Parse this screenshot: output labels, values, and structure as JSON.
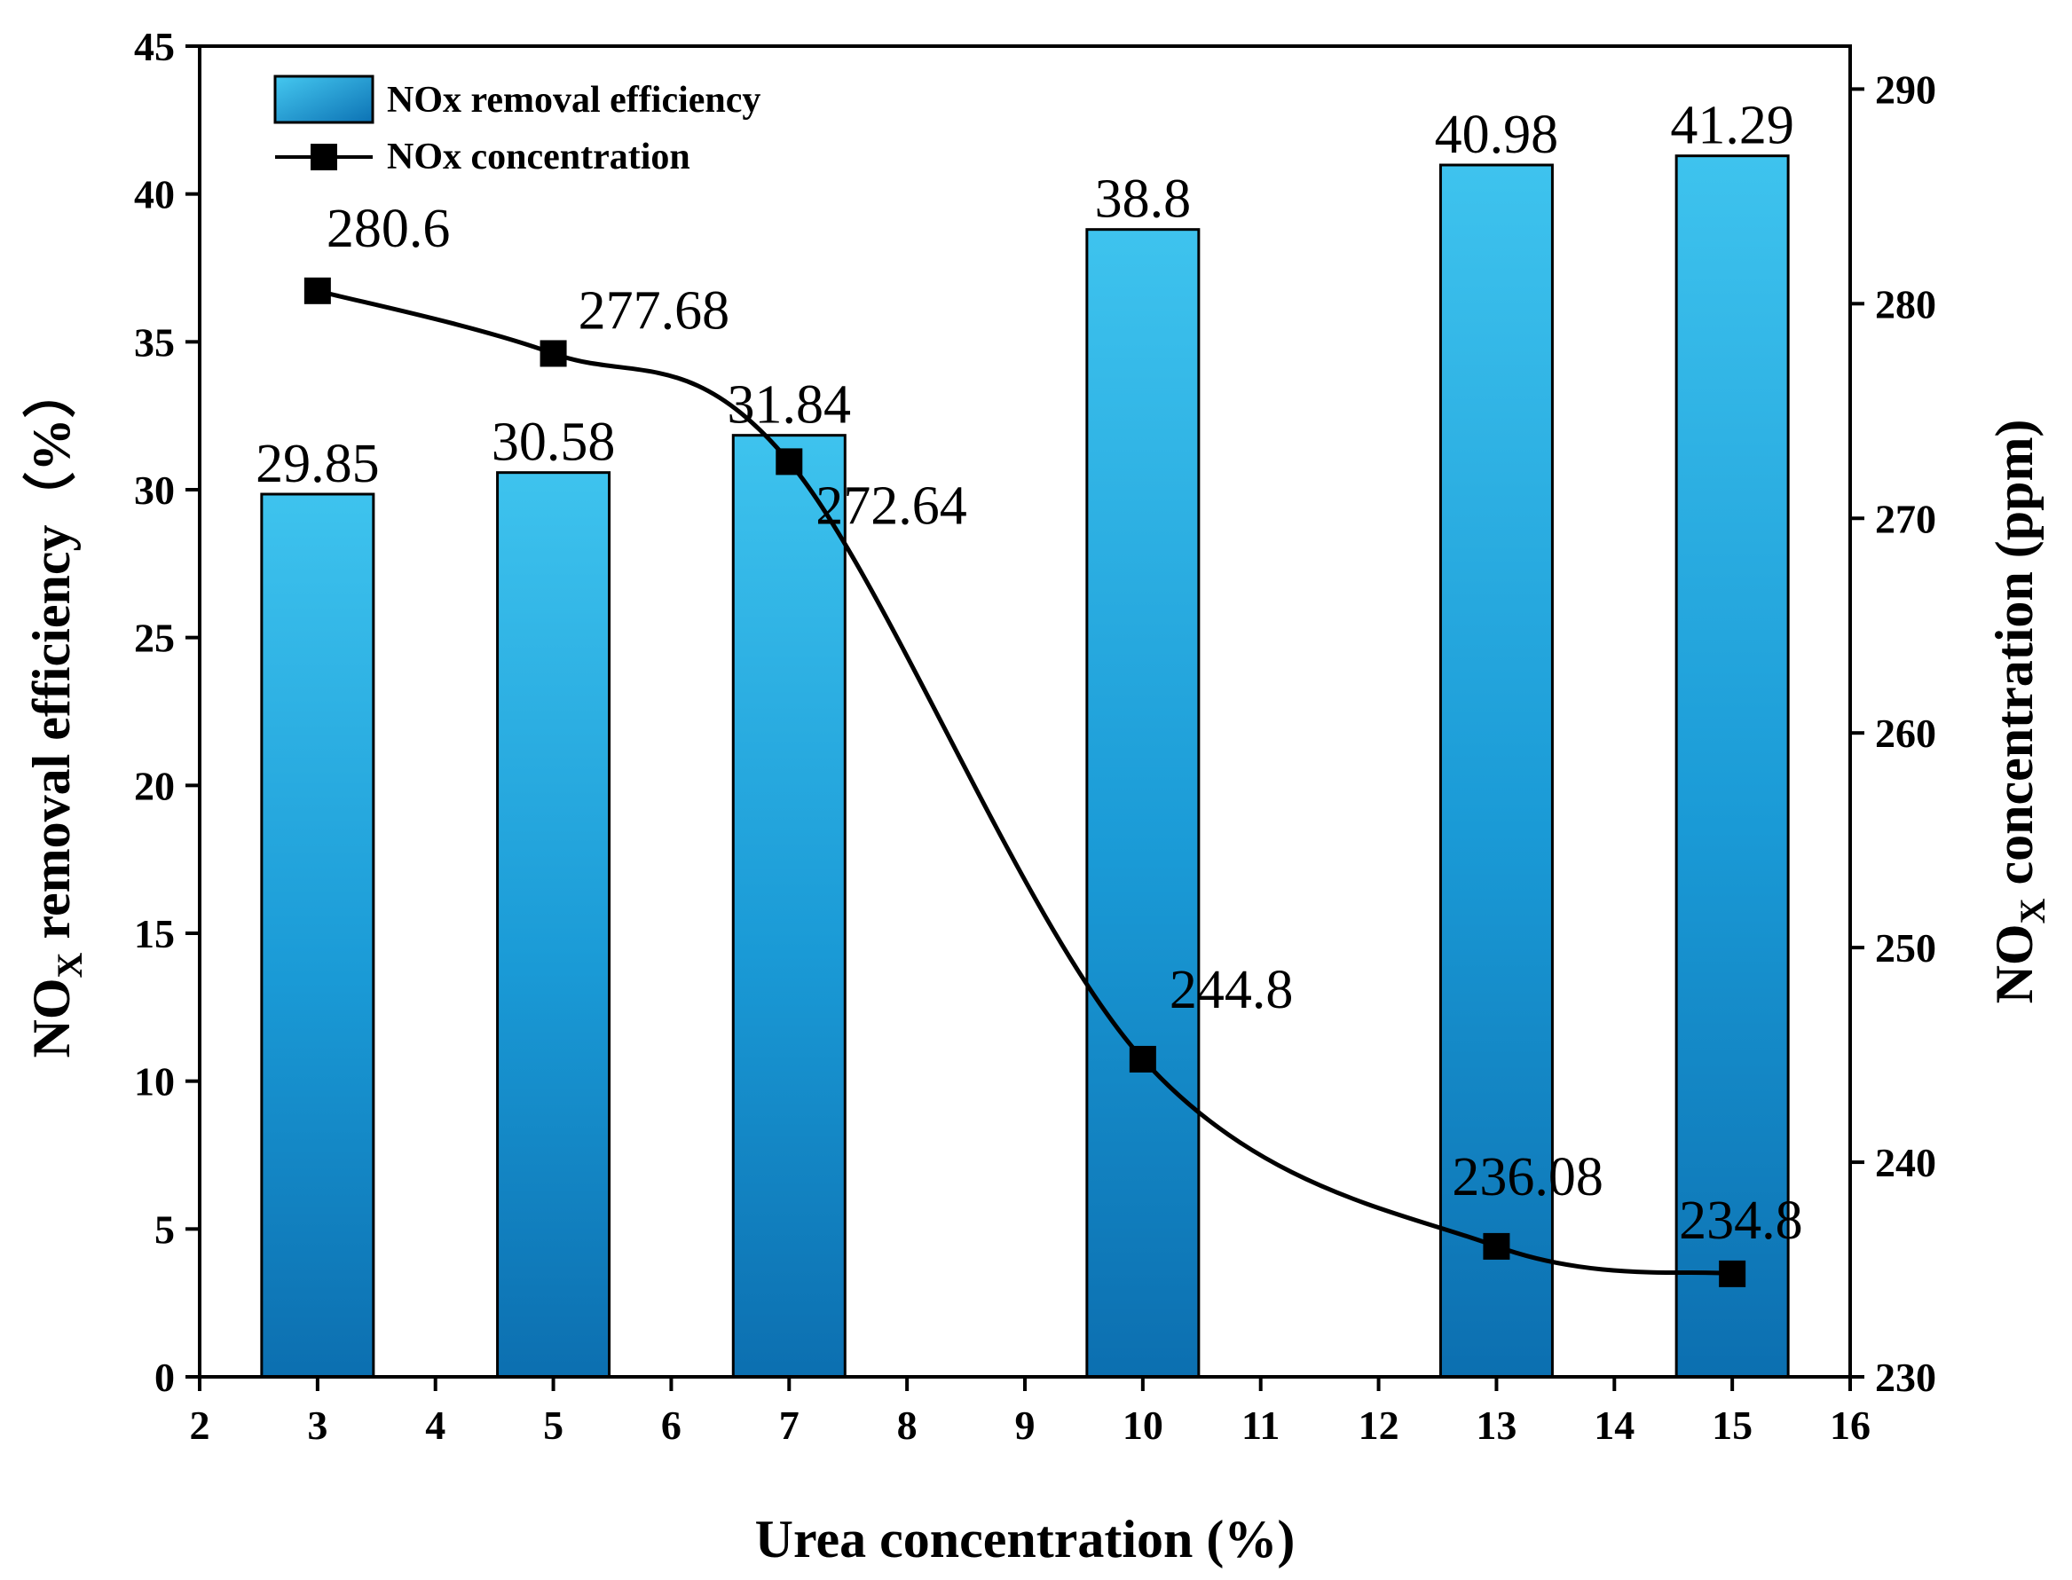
{
  "chart_data": {
    "type": "bar",
    "categories": [
      "3",
      "5",
      "7",
      "10",
      "13",
      "15"
    ],
    "x": [
      3,
      5,
      7,
      10,
      13,
      15
    ],
    "series": [
      {
        "name": "NOx removal efficiency",
        "kind": "bar",
        "axis": "left",
        "values": [
          29.85,
          30.58,
          31.84,
          38.8,
          40.98,
          41.29
        ],
        "labels": [
          "29.85",
          "30.58",
          "31.84",
          "38.8",
          "40.98",
          "41.29"
        ]
      },
      {
        "name": "NOx concentration",
        "kind": "line",
        "axis": "right",
        "values": [
          280.6,
          277.68,
          272.64,
          244.8,
          236.08,
          234.8
        ],
        "labels": [
          "280.6",
          "277.68",
          "272.64",
          "244.8",
          "236.08",
          "234.8"
        ]
      }
    ],
    "xlabel": "Urea concentration (%)",
    "ylabel": {
      "main": "NO",
      "sub": "X",
      "rest": " removal efficiency（%）"
    },
    "y2label": {
      "main": "NO",
      "sub": "X",
      "rest": " concentration (ppm)"
    },
    "xlim": [
      2,
      16
    ],
    "ylim": [
      0,
      45
    ],
    "y2lim": [
      230,
      292
    ],
    "xticks": [
      2,
      3,
      4,
      5,
      6,
      7,
      8,
      9,
      10,
      11,
      12,
      13,
      14,
      15,
      16
    ],
    "yticks": [
      0,
      5,
      10,
      15,
      20,
      25,
      30,
      35,
      40,
      45
    ],
    "y2ticks": [
      230,
      240,
      250,
      260,
      270,
      280,
      290
    ],
    "legend": "top-left",
    "grid": false,
    "colors": {
      "bar_light": "#3ec3ee",
      "bar_dark": "#0c72b4",
      "line": "#000000"
    }
  }
}
